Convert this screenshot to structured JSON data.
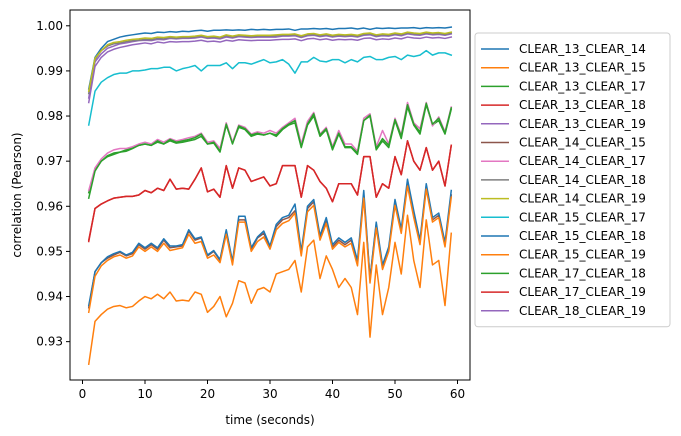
{
  "chart_data": {
    "type": "line",
    "xlabel": "time (seconds)",
    "ylabel": "correlation (Pearson)",
    "xlim": [
      -2,
      62
    ],
    "ylim": [
      0.9215,
      1.0035
    ],
    "xticks": [
      0,
      10,
      20,
      30,
      40,
      50,
      60
    ],
    "yticks": [
      0.93,
      0.94,
      0.95,
      0.96,
      0.97,
      0.98,
      0.99,
      1.0
    ],
    "ytick_labels": [
      "0.93",
      "0.94",
      "0.95",
      "0.96",
      "0.97",
      "0.98",
      "0.99",
      "1.00"
    ],
    "legend_position": "right-outside",
    "grid": false,
    "x": [
      1,
      2,
      3,
      4,
      5,
      6,
      7,
      8,
      9,
      10,
      11,
      12,
      13,
      14,
      15,
      16,
      17,
      18,
      19,
      20,
      21,
      22,
      23,
      24,
      25,
      26,
      27,
      28,
      29,
      30,
      31,
      32,
      33,
      34,
      35,
      36,
      37,
      38,
      39,
      40,
      41,
      42,
      43,
      44,
      45,
      46,
      47,
      48,
      49,
      50,
      51,
      52,
      53,
      54,
      55,
      56,
      57,
      58,
      59
    ],
    "series": [
      {
        "name": "CLEAR_13_CLEAR_14",
        "color": "#1f77b4",
        "values": [
          0.986,
          0.993,
          0.995,
          0.9965,
          0.997,
          0.9975,
          0.9978,
          0.998,
          0.9982,
          0.9984,
          0.9983,
          0.9986,
          0.9985,
          0.9987,
          0.9986,
          0.9988,
          0.9987,
          0.9989,
          0.999,
          0.9988,
          0.999,
          0.999,
          0.9991,
          0.999,
          0.9991,
          0.999,
          0.9992,
          0.9991,
          0.9992,
          0.9991,
          0.9992,
          0.9992,
          0.9993,
          0.999,
          0.9993,
          0.9993,
          0.9994,
          0.9993,
          0.9994,
          0.9992,
          0.9994,
          0.9994,
          0.9995,
          0.9993,
          0.9995,
          0.9992,
          0.9995,
          0.9994,
          0.9995,
          0.9994,
          0.9995,
          0.9995,
          0.9996,
          0.9994,
          0.9996,
          0.9995,
          0.9996,
          0.9995,
          0.9997
        ]
      },
      {
        "name": "CLEAR_13_CLEAR_15",
        "color": "#ff7f0e",
        "values": [
          0.925,
          0.9345,
          0.936,
          0.9372,
          0.9378,
          0.938,
          0.9375,
          0.9378,
          0.939,
          0.94,
          0.9395,
          0.9405,
          0.9395,
          0.941,
          0.939,
          0.9392,
          0.939,
          0.941,
          0.9405,
          0.9365,
          0.9378,
          0.94,
          0.9355,
          0.9385,
          0.9435,
          0.943,
          0.9385,
          0.9415,
          0.942,
          0.941,
          0.945,
          0.9455,
          0.946,
          0.948,
          0.941,
          0.951,
          0.9525,
          0.944,
          0.949,
          0.946,
          0.942,
          0.944,
          0.942,
          0.936,
          0.952,
          0.931,
          0.947,
          0.936,
          0.942,
          0.952,
          0.945,
          0.958,
          0.948,
          0.942,
          0.957,
          0.947,
          0.948,
          0.938,
          0.954
        ]
      },
      {
        "name": "CLEAR_13_CLEAR_17",
        "color": "#2ca02c",
        "values": [
          0.963,
          0.968,
          0.97,
          0.971,
          0.9715,
          0.972,
          0.9725,
          0.973,
          0.9735,
          0.9738,
          0.9735,
          0.9742,
          0.9738,
          0.9745,
          0.974,
          0.9742,
          0.9745,
          0.9748,
          0.9755,
          0.9738,
          0.974,
          0.972,
          0.978,
          0.974,
          0.9775,
          0.977,
          0.9755,
          0.976,
          0.9758,
          0.9762,
          0.9755,
          0.977,
          0.978,
          0.9785,
          0.973,
          0.978,
          0.98,
          0.9755,
          0.977,
          0.9725,
          0.976,
          0.973,
          0.973,
          0.9715,
          0.979,
          0.98,
          0.9725,
          0.9745,
          0.973,
          0.979,
          0.975,
          0.982,
          0.978,
          0.976,
          0.9825,
          0.978,
          0.979,
          0.976,
          0.9815
        ]
      },
      {
        "name": "CLEAR_13_CLEAR_18",
        "color": "#d62728",
        "values": [
          0.9525,
          0.9595,
          0.9605,
          0.9612,
          0.9618,
          0.962,
          0.9622,
          0.9622,
          0.9625,
          0.9635,
          0.963,
          0.964,
          0.9635,
          0.966,
          0.9638,
          0.964,
          0.9638,
          0.966,
          0.9685,
          0.9632,
          0.9638,
          0.962,
          0.969,
          0.964,
          0.9685,
          0.968,
          0.9655,
          0.966,
          0.9665,
          0.9645,
          0.965,
          0.969,
          0.969,
          0.969,
          0.962,
          0.969,
          0.968,
          0.9655,
          0.964,
          0.961,
          0.965,
          0.965,
          0.965,
          0.9625,
          0.971,
          0.971,
          0.962,
          0.965,
          0.964,
          0.971,
          0.967,
          0.9745,
          0.97,
          0.968,
          0.973,
          0.968,
          0.97,
          0.9645,
          0.9735
        ]
      },
      {
        "name": "CLEAR_13_CLEAR_19",
        "color": "#9467bd",
        "values": [
          0.984,
          0.992,
          0.9938,
          0.995,
          0.9955,
          0.996,
          0.9962,
          0.9965,
          0.9967,
          0.9968,
          0.9967,
          0.997,
          0.9969,
          0.9972,
          0.9971,
          0.9972,
          0.9972,
          0.9973,
          0.9975,
          0.9972,
          0.9973,
          0.9971,
          0.9975,
          0.9973,
          0.9976,
          0.9975,
          0.9974,
          0.9975,
          0.9975,
          0.9975,
          0.9975,
          0.9977,
          0.9977,
          0.9978,
          0.9974,
          0.9978,
          0.9979,
          0.9976,
          0.9978,
          0.9975,
          0.9977,
          0.9976,
          0.9977,
          0.9975,
          0.9979,
          0.998,
          0.9976,
          0.9978,
          0.9977,
          0.998,
          0.9978,
          0.9982,
          0.998,
          0.9979,
          0.9982,
          0.998,
          0.9981,
          0.9979,
          0.9982
        ]
      },
      {
        "name": "CLEAR_14_CLEAR_15",
        "color": "#8c564b",
        "values": [
          0.9375,
          0.9455,
          0.9475,
          0.9485,
          0.9492,
          0.9498,
          0.949,
          0.9495,
          0.9515,
          0.9505,
          0.9515,
          0.9505,
          0.9525,
          0.9508,
          0.951,
          0.9512,
          0.9545,
          0.9525,
          0.953,
          0.949,
          0.95,
          0.948,
          0.9545,
          0.9475,
          0.957,
          0.957,
          0.9505,
          0.953,
          0.954,
          0.951,
          0.9555,
          0.957,
          0.9575,
          0.959,
          0.9495,
          0.9595,
          0.961,
          0.953,
          0.957,
          0.951,
          0.9525,
          0.9515,
          0.9525,
          0.9475,
          0.9625,
          0.944,
          0.956,
          0.9465,
          0.9505,
          0.961,
          0.9545,
          0.965,
          0.958,
          0.952,
          0.9645,
          0.957,
          0.958,
          0.9515,
          0.9625
        ]
      },
      {
        "name": "CLEAR_14_CLEAR_17",
        "color": "#e377c2",
        "values": [
          0.9635,
          0.9685,
          0.9705,
          0.9718,
          0.9725,
          0.9728,
          0.9728,
          0.9732,
          0.9738,
          0.9742,
          0.9738,
          0.9748,
          0.9742,
          0.975,
          0.9745,
          0.9748,
          0.9752,
          0.9755,
          0.9762,
          0.9742,
          0.9745,
          0.9728,
          0.9785,
          0.9742,
          0.978,
          0.9775,
          0.976,
          0.9765,
          0.9762,
          0.9768,
          0.9762,
          0.9775,
          0.9785,
          0.9795,
          0.9738,
          0.9788,
          0.9808,
          0.976,
          0.9775,
          0.9732,
          0.9768,
          0.9738,
          0.9738,
          0.9722,
          0.9795,
          0.9805,
          0.9732,
          0.9768,
          0.9738,
          0.9795,
          0.9758,
          0.983,
          0.9785,
          0.9772,
          0.983,
          0.9778,
          0.9798,
          0.9765,
          0.982
        ]
      },
      {
        "name": "CLEAR_14_CLEAR_18",
        "color": "#7f7f7f",
        "values": [
          0.985,
          0.9925,
          0.9945,
          0.9955,
          0.996,
          0.9962,
          0.9965,
          0.9967,
          0.9968,
          0.997,
          0.9969,
          0.9972,
          0.9971,
          0.9974,
          0.9972,
          0.9974,
          0.9974,
          0.9975,
          0.9977,
          0.9974,
          0.9975,
          0.9973,
          0.9978,
          0.9975,
          0.9978,
          0.9977,
          0.9976,
          0.9977,
          0.9977,
          0.9977,
          0.9978,
          0.9979,
          0.9979,
          0.998,
          0.9976,
          0.998,
          0.9981,
          0.9978,
          0.998,
          0.9977,
          0.9979,
          0.9978,
          0.9979,
          0.9977,
          0.9981,
          0.9982,
          0.9978,
          0.998,
          0.9979,
          0.9982,
          0.998,
          0.9984,
          0.9982,
          0.9981,
          0.9984,
          0.9982,
          0.9983,
          0.9981,
          0.9984
        ]
      },
      {
        "name": "CLEAR_14_CLEAR_19",
        "color": "#bcbd22",
        "values": [
          0.9855,
          0.9928,
          0.9945,
          0.9958,
          0.9963,
          0.9965,
          0.9968,
          0.997,
          0.9971,
          0.9973,
          0.9972,
          0.9975,
          0.9974,
          0.9976,
          0.9975,
          0.9976,
          0.9976,
          0.9977,
          0.9979,
          0.9976,
          0.9977,
          0.9975,
          0.998,
          0.9977,
          0.998,
          0.9979,
          0.9978,
          0.9979,
          0.9979,
          0.9979,
          0.998,
          0.9981,
          0.9981,
          0.9982,
          0.9978,
          0.9982,
          0.9983,
          0.998,
          0.9982,
          0.9979,
          0.9981,
          0.998,
          0.9981,
          0.9979,
          0.9983,
          0.9984,
          0.998,
          0.9982,
          0.9981,
          0.9984,
          0.9982,
          0.9986,
          0.9984,
          0.9983,
          0.9986,
          0.9984,
          0.9985,
          0.9983,
          0.9986
        ]
      },
      {
        "name": "CLEAR_15_CLEAR_17",
        "color": "#17becf",
        "values": [
          0.978,
          0.9855,
          0.9875,
          0.9885,
          0.9892,
          0.9895,
          0.9895,
          0.99,
          0.99,
          0.9902,
          0.9905,
          0.9905,
          0.9908,
          0.9908,
          0.99,
          0.9905,
          0.9908,
          0.9912,
          0.99,
          0.9912,
          0.9912,
          0.9912,
          0.9918,
          0.9905,
          0.9918,
          0.9918,
          0.9915,
          0.992,
          0.9925,
          0.9918,
          0.992,
          0.9925,
          0.9915,
          0.9895,
          0.992,
          0.992,
          0.993,
          0.9922,
          0.992,
          0.9925,
          0.9925,
          0.9918,
          0.9925,
          0.992,
          0.993,
          0.9932,
          0.9925,
          0.9925,
          0.993,
          0.9932,
          0.9925,
          0.9935,
          0.9932,
          0.9935,
          0.9945,
          0.9935,
          0.994,
          0.994,
          0.9935
        ]
      },
      {
        "name": "CLEAR_15_CLEAR_18",
        "color": "#1f77b4",
        "values": [
          0.938,
          0.9455,
          0.9475,
          0.9488,
          0.9495,
          0.95,
          0.9492,
          0.9498,
          0.9518,
          0.9508,
          0.9518,
          0.9508,
          0.9528,
          0.9512,
          0.9512,
          0.9515,
          0.9548,
          0.9528,
          0.9532,
          0.9492,
          0.9502,
          0.9482,
          0.9548,
          0.9478,
          0.9578,
          0.9578,
          0.9508,
          0.9532,
          0.9545,
          0.9512,
          0.956,
          0.9575,
          0.958,
          0.9605,
          0.95,
          0.96,
          0.9615,
          0.9535,
          0.9575,
          0.9515,
          0.953,
          0.952,
          0.953,
          0.948,
          0.9635,
          0.944,
          0.9565,
          0.947,
          0.951,
          0.9615,
          0.955,
          0.966,
          0.959,
          0.9525,
          0.965,
          0.9575,
          0.9585,
          0.952,
          0.9635
        ]
      },
      {
        "name": "CLEAR_15_CLEAR_19",
        "color": "#ff7f0e",
        "values": [
          0.9365,
          0.9445,
          0.9468,
          0.948,
          0.9488,
          0.9492,
          0.9485,
          0.949,
          0.951,
          0.95,
          0.951,
          0.95,
          0.9518,
          0.9502,
          0.9505,
          0.9508,
          0.9538,
          0.9518,
          0.9522,
          0.9485,
          0.9492,
          0.9475,
          0.9538,
          0.947,
          0.9565,
          0.9565,
          0.95,
          0.9522,
          0.9532,
          0.9505,
          0.9548,
          0.9562,
          0.9568,
          0.9585,
          0.949,
          0.9588,
          0.9602,
          0.9525,
          0.9562,
          0.9505,
          0.952,
          0.951,
          0.9518,
          0.9468,
          0.9618,
          0.943,
          0.9552,
          0.946,
          0.95,
          0.9602,
          0.954,
          0.9645,
          0.9575,
          0.9515,
          0.9638,
          0.9565,
          0.9575,
          0.951,
          0.962
        ]
      },
      {
        "name": "CLEAR_17_CLEAR_18",
        "color": "#2ca02c",
        "values": [
          0.9618,
          0.9678,
          0.97,
          0.9712,
          0.9718,
          0.972,
          0.9722,
          0.9728,
          0.9735,
          0.9738,
          0.9735,
          0.9745,
          0.9738,
          0.9748,
          0.9742,
          0.9745,
          0.9748,
          0.9752,
          0.976,
          0.9738,
          0.9742,
          0.9722,
          0.9782,
          0.9738,
          0.9778,
          0.9772,
          0.9758,
          0.9762,
          0.9758,
          0.9762,
          0.9758,
          0.9772,
          0.9782,
          0.979,
          0.9732,
          0.9782,
          0.9805,
          0.9758,
          0.9772,
          0.9728,
          0.9762,
          0.9732,
          0.9732,
          0.9718,
          0.979,
          0.9802,
          0.9728,
          0.975,
          0.9735,
          0.9792,
          0.9755,
          0.9825,
          0.9782,
          0.9765,
          0.9828,
          0.9782,
          0.9795,
          0.9762,
          0.9818
        ]
      },
      {
        "name": "CLEAR_17_CLEAR_19",
        "color": "#d62728",
        "values": [
          0.9522,
          0.9595,
          0.9605,
          0.9612,
          0.9618,
          0.962,
          0.9622,
          0.9622,
          0.9625,
          0.9635,
          0.963,
          0.964,
          0.9635,
          0.966,
          0.9638,
          0.964,
          0.9638,
          0.966,
          0.9685,
          0.9632,
          0.9638,
          0.962,
          0.969,
          0.964,
          0.9685,
          0.968,
          0.9655,
          0.966,
          0.9665,
          0.9645,
          0.965,
          0.969,
          0.969,
          0.969,
          0.962,
          0.969,
          0.968,
          0.9655,
          0.964,
          0.961,
          0.965,
          0.965,
          0.965,
          0.9625,
          0.971,
          0.971,
          0.962,
          0.965,
          0.964,
          0.971,
          0.967,
          0.9745,
          0.97,
          0.968,
          0.973,
          0.968,
          0.97,
          0.9645,
          0.9735
        ]
      },
      {
        "name": "CLEAR_18_CLEAR_19",
        "color": "#9467bd",
        "values": [
          0.983,
          0.991,
          0.993,
          0.9942,
          0.9948,
          0.9952,
          0.9955,
          0.9958,
          0.996,
          0.9962,
          0.996,
          0.9964,
          0.9962,
          0.9965,
          0.9964,
          0.9965,
          0.9965,
          0.9966,
          0.9968,
          0.9965,
          0.9966,
          0.9964,
          0.9968,
          0.9966,
          0.9969,
          0.9968,
          0.9967,
          0.9968,
          0.9968,
          0.9968,
          0.9969,
          0.997,
          0.997,
          0.9971,
          0.9967,
          0.9971,
          0.9972,
          0.9969,
          0.9971,
          0.9968,
          0.997,
          0.9969,
          0.997,
          0.9968,
          0.9972,
          0.9973,
          0.9969,
          0.9971,
          0.997,
          0.9973,
          0.9971,
          0.9975,
          0.9973,
          0.9972,
          0.9975,
          0.9973,
          0.9974,
          0.9972,
          0.9975
        ]
      }
    ]
  }
}
